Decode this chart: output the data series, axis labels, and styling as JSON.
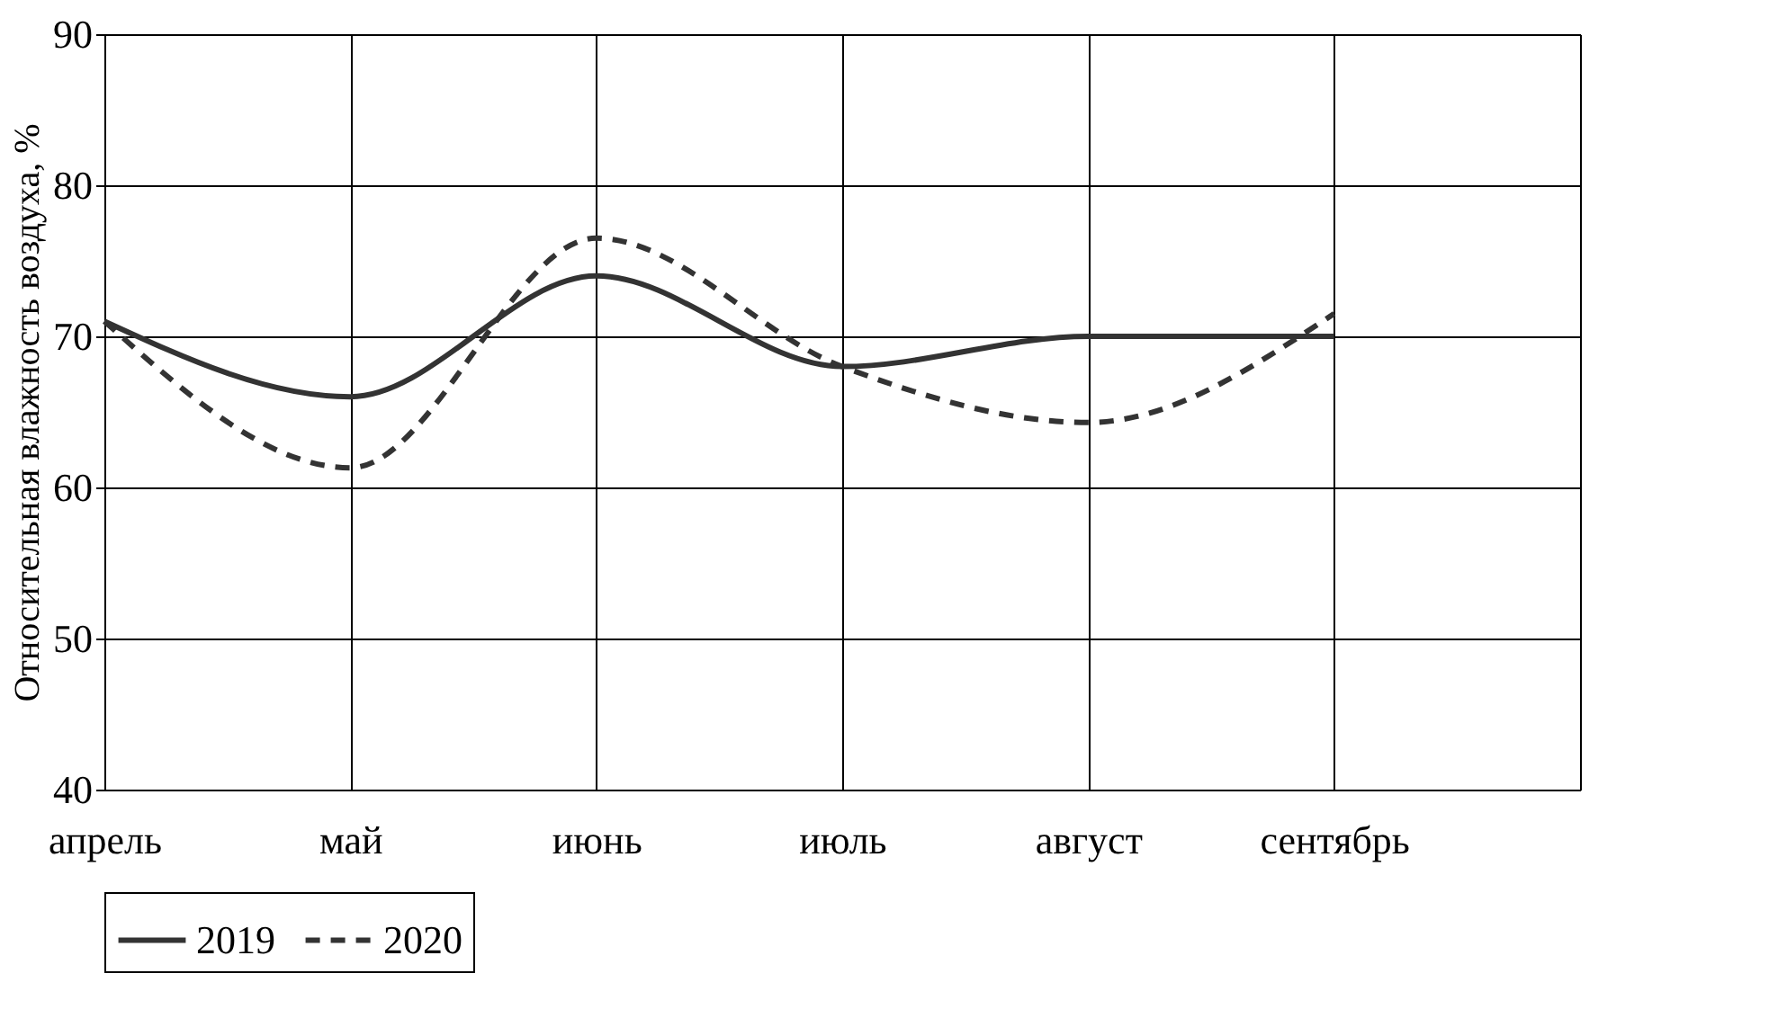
{
  "chart_data": {
    "type": "line",
    "ylabel": "Относительная влажность воздуха, %",
    "categories": [
      "апрель",
      "май",
      "июнь",
      "июль",
      "август",
      "сентябрь",
      null
    ],
    "series": [
      {
        "name": "2019",
        "color": "#333333",
        "line_style": "solid",
        "values": [
          71,
          66,
          74,
          68,
          70,
          70,
          null
        ]
      },
      {
        "name": "2020",
        "color": "#333333",
        "line_style": "dashed",
        "values": [
          71,
          61.3,
          76.5,
          68,
          64.3,
          71.5,
          null
        ]
      }
    ],
    "ylim": [
      40,
      90
    ],
    "yticks": [
      40,
      50,
      60,
      70,
      80,
      90
    ],
    "grid": true,
    "legend": "bottom",
    "marker": "none"
  }
}
